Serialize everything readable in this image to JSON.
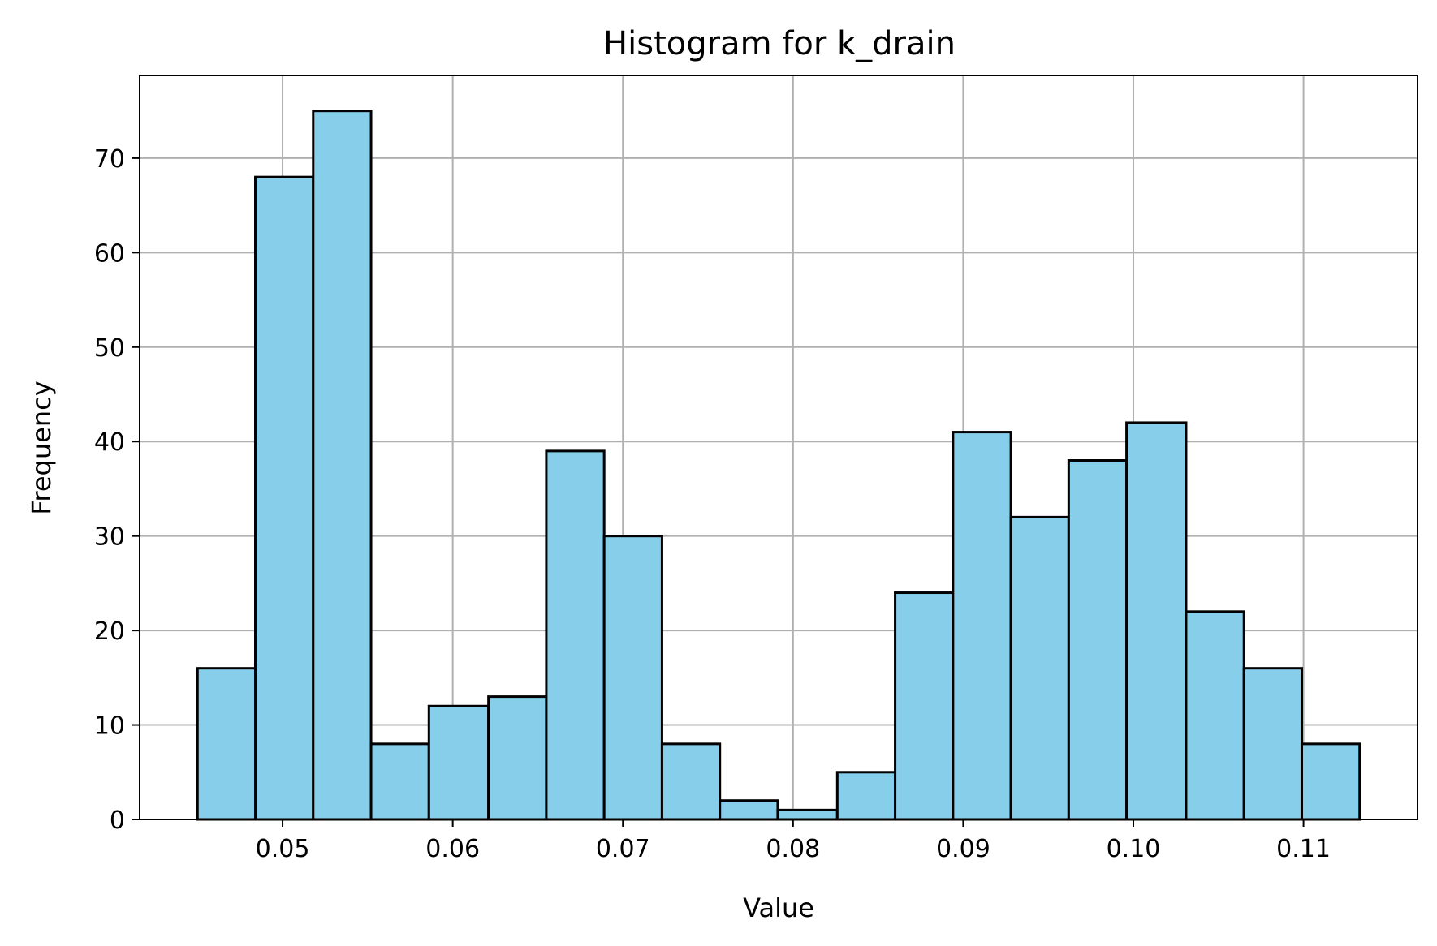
{
  "chart_data": {
    "type": "bar",
    "title": "Histogram for k_drain",
    "xlabel": "Value",
    "ylabel": "Frequency",
    "bin_edges": [
      0.045,
      0.0484,
      0.0518,
      0.0552,
      0.0586,
      0.0621,
      0.0655,
      0.0689,
      0.0723,
      0.0757,
      0.0791,
      0.0826,
      0.086,
      0.0894,
      0.0928,
      0.0962,
      0.0996,
      0.1031,
      0.1065,
      0.1099,
      0.1133
    ],
    "values": [
      16,
      68,
      75,
      8,
      12,
      13,
      39,
      30,
      8,
      2,
      1,
      5,
      24,
      41,
      32,
      38,
      42,
      22,
      16,
      8
    ],
    "xlim": [
      0.0416,
      0.1167
    ],
    "ylim": [
      0,
      78.75
    ],
    "xticks": [
      0.05,
      0.06,
      0.07,
      0.08,
      0.09,
      0.1,
      0.11
    ],
    "xtick_labels": [
      "0.05",
      "0.06",
      "0.07",
      "0.08",
      "0.09",
      "0.10",
      "0.11"
    ],
    "yticks": [
      0,
      10,
      20,
      30,
      40,
      50,
      60,
      70
    ],
    "ytick_labels": [
      "0",
      "10",
      "20",
      "30",
      "40",
      "50",
      "60",
      "70"
    ],
    "grid": true,
    "bar_color": "#87CEEB",
    "edge_color": "#000000",
    "grid_color": "#b0b0b0"
  }
}
